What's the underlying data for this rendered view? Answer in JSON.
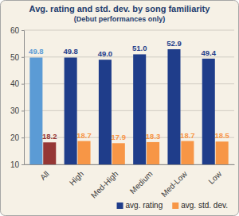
{
  "chart_data": {
    "type": "bar",
    "title": "Avg. rating and std. dev. by song familiarity",
    "subtitle": "(Debut performances only)",
    "categories": [
      "All",
      "High",
      "Med-High",
      "Medium",
      "Med-Low",
      "Low"
    ],
    "series": [
      {
        "name": "avg. rating",
        "color": "#1f3d8a",
        "colors": [
          "#5b9bd5",
          "#1f3d8a",
          "#1f3d8a",
          "#1f3d8a",
          "#1f3d8a",
          "#1f3d8a"
        ],
        "values": [
          49.8,
          49.8,
          49.0,
          51.0,
          52.9,
          49.4
        ],
        "value_labels": [
          "49.8",
          "49.8",
          "49.0",
          "51.0",
          "52.9",
          "49.4"
        ]
      },
      {
        "name": "avg. std. dev.",
        "color": "#f79646",
        "colors": [
          "#953735",
          "#f79646",
          "#f79646",
          "#f79646",
          "#f79646",
          "#f79646"
        ],
        "values": [
          18.2,
          18.7,
          17.9,
          18.3,
          18.7,
          18.5
        ],
        "value_labels": [
          "18.2",
          "18.7",
          "17.9",
          "18.3",
          "18.7",
          "18.5"
        ]
      }
    ],
    "ylim": [
      10,
      60
    ],
    "yticks": [
      10,
      20,
      30,
      40,
      50,
      60
    ],
    "grid": true,
    "data_labels": true,
    "legend": "bottom"
  }
}
